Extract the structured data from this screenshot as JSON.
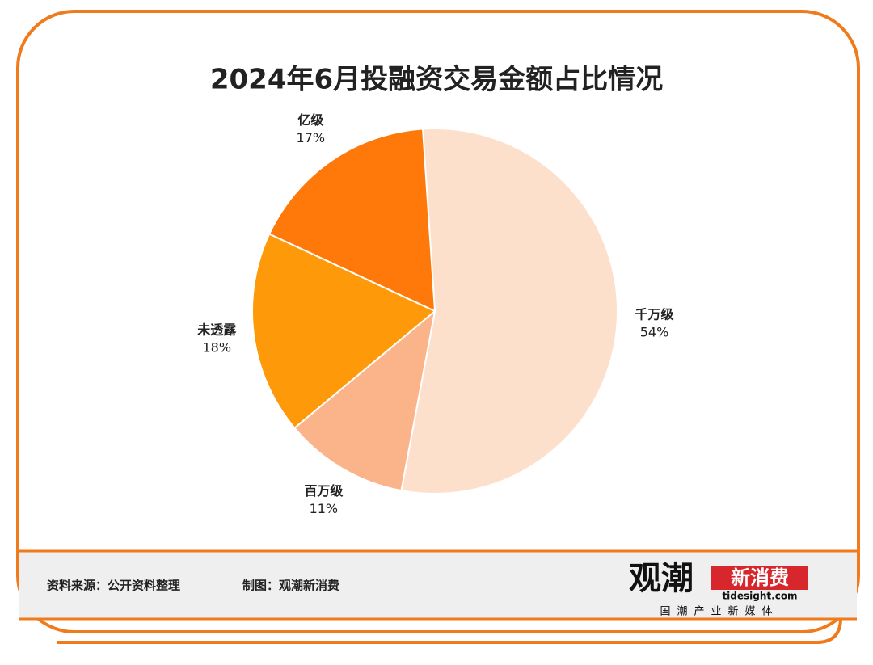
{
  "chart_data": {
    "type": "pie",
    "title": "2024年6月投融资交易金额占比情况",
    "categories": [
      "千万级",
      "百万级",
      "未透露",
      "亿级"
    ],
    "values": [
      54,
      11,
      18,
      17
    ],
    "value_labels": [
      "54%",
      "11%",
      "18%",
      "17%"
    ],
    "colors": [
      "#fde0cc",
      "#fbb48a",
      "#fe9a0a",
      "#fe780a"
    ]
  },
  "footer": {
    "source": "资料来源：公开资料整理",
    "credit": "制图：观潮新消费"
  },
  "logo": {
    "name": "观潮",
    "brand": "新消费",
    "site": "tidesight.com",
    "slogan": "国潮产业新媒体"
  }
}
